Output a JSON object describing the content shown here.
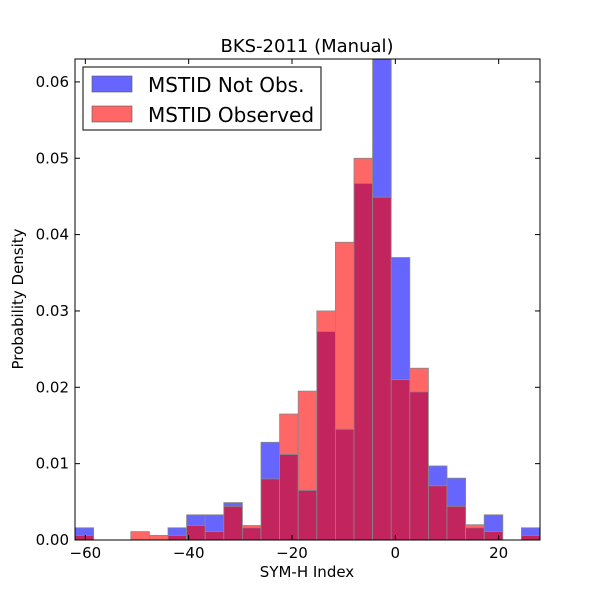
{
  "chart_data": {
    "type": "bar",
    "title": "BKS-2011 (Manual)",
    "xlabel": "SYM-H Index",
    "ylabel": "Probability Density",
    "xlim": [
      -62,
      28
    ],
    "ylim": [
      0,
      0.063
    ],
    "bin_edges": [
      -62,
      -58.4,
      -54.8,
      -51.2,
      -47.6,
      -44,
      -40.4,
      -36.8,
      -33.2,
      -29.6,
      -26,
      -22.4,
      -18.8,
      -15.2,
      -11.6,
      -8,
      -4.4,
      -0.8,
      2.8,
      6.4,
      10,
      13.6,
      17.2,
      20.8,
      24.4,
      28
    ],
    "xticks": [
      -60,
      -40,
      -20,
      0,
      20
    ],
    "xtick_labels": [
      "−60",
      "−40",
      "−20",
      "0",
      "20"
    ],
    "yticks": [
      0,
      0.01,
      0.02,
      0.03,
      0.04,
      0.05,
      0.06
    ],
    "ytick_labels": [
      "0.00",
      "0.01",
      "0.02",
      "0.03",
      "0.04",
      "0.05",
      "0.06"
    ],
    "grid": false,
    "legend_position": "top-left",
    "series": [
      {
        "name": "MSTID Not Obs.",
        "color": "#6666ff",
        "values": [
          0.0016,
          0,
          0,
          0,
          0,
          0.0016,
          0.0033,
          0.0033,
          0.0049,
          0.0016,
          0.0128,
          0.0112,
          0.0065,
          0.0273,
          0.0145,
          0.0467,
          0.064,
          0.037,
          0.0194,
          0.0097,
          0.0081,
          0.0016,
          0.0033,
          0,
          0.0016
        ]
      },
      {
        "name": "MSTID Observed",
        "color": "#ff6666",
        "values": [
          0.0006,
          0,
          0,
          0.0011,
          0.0006,
          0.0006,
          0.0019,
          0.0011,
          0.0044,
          0.0019,
          0.008,
          0.0165,
          0.0195,
          0.03,
          0.039,
          0.05,
          0.0449,
          0.021,
          0.0225,
          0.0071,
          0.0044,
          0.002,
          0.0011,
          0,
          0.0006
        ]
      }
    ],
    "overlap_color": "#c2255e"
  }
}
